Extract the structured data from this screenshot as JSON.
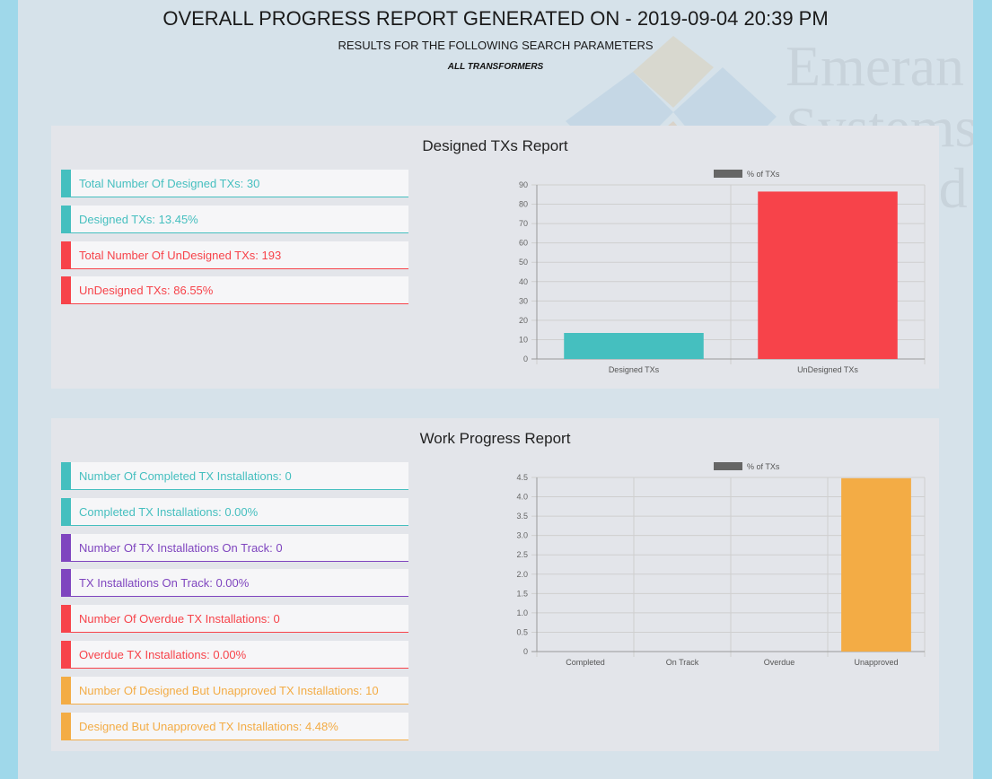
{
  "header": {
    "title": "OVERALL PROGRESS REPORT GENERATED ON - 2019-09-04 20:39 PM",
    "subtitle": "RESULTS FOR THE FOLLOWING SEARCH PARAMETERS",
    "parameter": "ALL TRANSFORMERS"
  },
  "watermark": {
    "text": "Emeran\nSystems\nLimited"
  },
  "colors": {
    "teal": "#45bfbf",
    "red": "#f7434a",
    "purple": "#7f45bf",
    "orange": "#f3ac45",
    "legend_swatch": "#666666"
  },
  "designed_panel": {
    "title": "Designed TXs Report",
    "stats": [
      {
        "text": "Total Number Of Designed TXs: 30",
        "color": "teal"
      },
      {
        "text": "Designed TXs: 13.45%",
        "color": "teal"
      },
      {
        "text": "Total Number Of UnDesigned TXs: 193",
        "color": "red"
      },
      {
        "text": "UnDesigned TXs: 86.55%",
        "color": "red"
      }
    ]
  },
  "work_panel": {
    "title": "Work Progress Report",
    "stats": [
      {
        "text": "Number Of Completed TX Installations: 0",
        "color": "teal"
      },
      {
        "text": "Completed TX Installations: 0.00%",
        "color": "teal"
      },
      {
        "text": "Number Of TX Installations On Track: 0",
        "color": "purple"
      },
      {
        "text": "TX Installations On Track: 0.00%",
        "color": "purple"
      },
      {
        "text": "Number Of Overdue TX Installations: 0",
        "color": "red"
      },
      {
        "text": "Overdue TX Installations: 0.00%",
        "color": "red"
      },
      {
        "text": "Number Of Designed But Unapproved TX Installations: 10",
        "color": "orange"
      },
      {
        "text": "Designed But Unapproved TX Installations: 4.48%",
        "color": "orange"
      }
    ]
  },
  "chart_data": [
    {
      "type": "bar",
      "legend": "% of TXs",
      "legend_position": "top",
      "categories": [
        "Designed TXs",
        "UnDesigned TXs"
      ],
      "values": [
        13.45,
        86.55
      ],
      "bar_colors": [
        "#45bfbf",
        "#f7434a"
      ],
      "ylim": [
        0,
        90
      ],
      "yticks": [
        "0",
        "10",
        "20",
        "30",
        "40",
        "50",
        "60",
        "70",
        "80",
        "90"
      ],
      "grid": true
    },
    {
      "type": "bar",
      "legend": "% of TXs",
      "legend_position": "top",
      "categories": [
        "Completed",
        "On Track",
        "Overdue",
        "Unapproved"
      ],
      "values": [
        0,
        0,
        0,
        4.48
      ],
      "bar_colors": [
        "#45bfbf",
        "#7f45bf",
        "#f7434a",
        "#f3ac45"
      ],
      "ylim": [
        0,
        4.5
      ],
      "yticks": [
        "0",
        "0.5",
        "1.0",
        "1.5",
        "2.0",
        "2.5",
        "3.0",
        "3.5",
        "4.0",
        "4.5"
      ],
      "grid": true
    }
  ]
}
